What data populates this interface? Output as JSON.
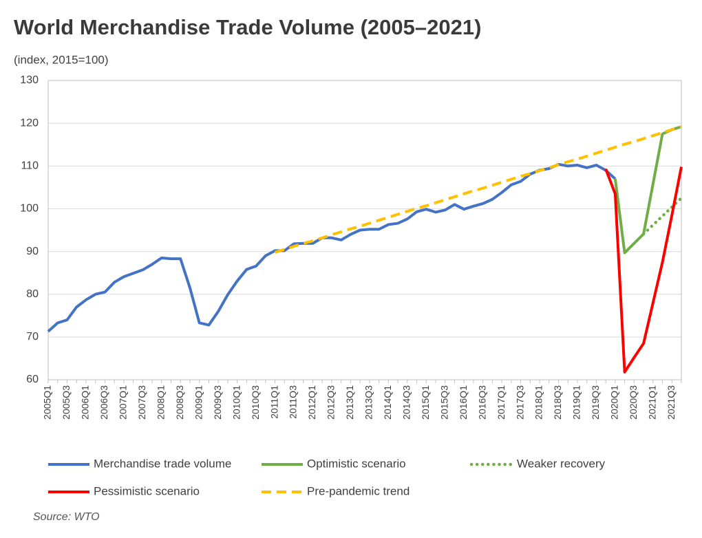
{
  "chart_data": {
    "type": "line",
    "title": "World Merchandise Trade Volume (2005–2021)",
    "subtitle": "(index, 2015=100)",
    "source": "Source: WTO",
    "categories": [
      "2005Q1",
      null,
      "2005Q3",
      null,
      "2006Q1",
      null,
      "2006Q3",
      null,
      "2007Q1",
      null,
      "2007Q3",
      null,
      "2008Q1",
      null,
      "2008Q3",
      null,
      "2009Q1",
      null,
      "2009Q3",
      null,
      "2010Q1",
      null,
      "2010Q3",
      null,
      "2011Q1",
      null,
      "2011Q3",
      null,
      "2012Q1",
      null,
      "2012Q3",
      null,
      "2013Q1",
      null,
      "2013Q3",
      null,
      "2014Q1",
      null,
      "2014Q3",
      null,
      "2015Q1",
      null,
      "2015Q3",
      null,
      "2016Q1",
      null,
      "2016Q3",
      null,
      "2017Q1",
      null,
      "2017Q3",
      null,
      "2018Q1",
      null,
      "2018Q3",
      null,
      "2019Q1",
      null,
      "2019Q3",
      null,
      "2020Q1",
      null,
      "2020Q3",
      null,
      "2021Q1",
      null,
      "2021Q3",
      null
    ],
    "ylim": [
      60,
      130
    ],
    "yticks": [
      60,
      70,
      80,
      90,
      100,
      110,
      120,
      130
    ],
    "grid": true,
    "series": [
      {
        "name": "Merchandise trade volume",
        "color": "#4472c4",
        "linestyle": "solid",
        "values": [
          71.3,
          73.3,
          74.0,
          77.0,
          78.7,
          80.0,
          80.5,
          82.8,
          84.1,
          84.9,
          85.7,
          87.0,
          88.5,
          88.3,
          88.3,
          81.5,
          73.3,
          72.8,
          76.0,
          79.9,
          83.1,
          85.8,
          86.6,
          89.0,
          90.2,
          90.2,
          91.8,
          91.9,
          91.9,
          93.2,
          93.2,
          92.7,
          94.0,
          95.0,
          95.2,
          95.2,
          96.3,
          96.6,
          97.6,
          99.3,
          99.9,
          99.2,
          99.7,
          101.0,
          99.9,
          100.6,
          101.2,
          102.2,
          103.8,
          105.6,
          106.4,
          108.1,
          109.0,
          109.4,
          110.4,
          110.0,
          110.2,
          109.6,
          110.2,
          109.0,
          107.0,
          null,
          null,
          null,
          null,
          null,
          null,
          null
        ]
      },
      {
        "name": "Optimistic scenario",
        "color": "#70ad47",
        "linestyle": "solid",
        "values": [
          null,
          null,
          null,
          null,
          null,
          null,
          null,
          null,
          null,
          null,
          null,
          null,
          null,
          null,
          null,
          null,
          null,
          null,
          null,
          null,
          null,
          null,
          null,
          null,
          null,
          null,
          null,
          null,
          null,
          null,
          null,
          null,
          null,
          null,
          null,
          null,
          null,
          null,
          null,
          null,
          null,
          null,
          null,
          null,
          null,
          null,
          null,
          null,
          null,
          null,
          null,
          null,
          null,
          null,
          null,
          null,
          null,
          null,
          null,
          null,
          107.0,
          89.7,
          91.9,
          94.1,
          105.8,
          117.5,
          118.5,
          119.2
        ]
      },
      {
        "name": "Weaker recovery",
        "color": "#70ad47",
        "linestyle": "dotted",
        "values": [
          null,
          null,
          null,
          null,
          null,
          null,
          null,
          null,
          null,
          null,
          null,
          null,
          null,
          null,
          null,
          null,
          null,
          null,
          null,
          null,
          null,
          null,
          null,
          null,
          null,
          null,
          null,
          null,
          null,
          null,
          null,
          null,
          null,
          null,
          null,
          null,
          null,
          null,
          null,
          null,
          null,
          null,
          null,
          null,
          null,
          null,
          null,
          null,
          null,
          null,
          null,
          null,
          null,
          null,
          null,
          null,
          null,
          null,
          null,
          null,
          null,
          null,
          null,
          94.1,
          96.2,
          98.3,
          100.4,
          102.5
        ]
      },
      {
        "name": "Pessimistic scenario",
        "color": "#ff0000",
        "linestyle": "solid",
        "values": [
          null,
          null,
          null,
          null,
          null,
          null,
          null,
          null,
          null,
          null,
          null,
          null,
          null,
          null,
          null,
          null,
          null,
          null,
          null,
          null,
          null,
          null,
          null,
          null,
          null,
          null,
          null,
          null,
          null,
          null,
          null,
          null,
          null,
          null,
          null,
          null,
          null,
          null,
          null,
          null,
          null,
          null,
          null,
          null,
          null,
          null,
          null,
          null,
          null,
          null,
          null,
          null,
          null,
          null,
          null,
          null,
          null,
          null,
          null,
          109.3,
          103.5,
          61.8,
          65.2,
          68.5,
          78.0,
          87.5,
          98.5,
          109.8
        ]
      },
      {
        "name": "Pre-pandemic trend",
        "color": "#ffc000",
        "linestyle": "dashed",
        "values": [
          null,
          null,
          null,
          null,
          null,
          null,
          null,
          null,
          null,
          null,
          null,
          null,
          null,
          null,
          null,
          null,
          null,
          null,
          null,
          null,
          null,
          null,
          null,
          null,
          89.8,
          90.5,
          91.2,
          91.9,
          92.5,
          93.2,
          93.9,
          94.6,
          95.3,
          95.9,
          96.6,
          97.3,
          98.0,
          98.7,
          99.4,
          100.1,
          100.7,
          101.4,
          102.1,
          102.8,
          103.5,
          104.2,
          104.8,
          105.5,
          106.2,
          106.9,
          107.6,
          108.2,
          108.9,
          109.6,
          110.3,
          111.0,
          111.6,
          112.3,
          113.0,
          113.7,
          114.4,
          115.1,
          115.7,
          116.4,
          117.1,
          117.8,
          118.5,
          119.2
        ]
      }
    ]
  }
}
